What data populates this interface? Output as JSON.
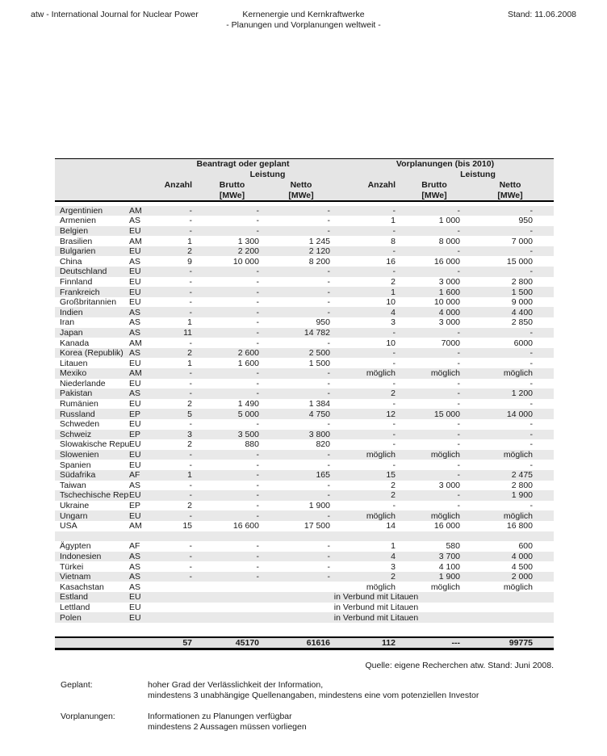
{
  "page_header": {
    "left": "atw - International Journal for Nuclear Power",
    "center_line1": "Kernenergie und Kernkraftwerke",
    "center_line2": "- Planungen und Vorplanungen weltweit -",
    "right": "Stand: 11.06.2008"
  },
  "table": {
    "group_headers": {
      "beantragt": "Beantragt oder geplant",
      "vorplanungen": "Vorplanungen (bis 2010)",
      "leistung": "Leistung"
    },
    "columns": {
      "anzahl": "Anzahl",
      "brutto": "Brutto",
      "netto": "Netto",
      "mwe": "[MWe]"
    },
    "rows": [
      {
        "type": "data",
        "country": "Argentinien",
        "region": "AM",
        "cells": [
          "-",
          "-",
          "-",
          "-",
          "-",
          "-"
        ]
      },
      {
        "type": "data",
        "country": "Armenien",
        "region": "AS",
        "cells": [
          "-",
          "-",
          "-",
          "1",
          "1 000",
          "950"
        ]
      },
      {
        "type": "data",
        "country": "Belgien",
        "region": "EU",
        "cells": [
          "-",
          "-",
          "-",
          "-",
          "-",
          "-"
        ]
      },
      {
        "type": "data",
        "country": "Brasilien",
        "region": "AM",
        "cells": [
          "1",
          "1 300",
          "1 245",
          "8",
          "8 000",
          "7 000"
        ]
      },
      {
        "type": "data",
        "country": "Bulgarien",
        "region": "EU",
        "cells": [
          "2",
          "2 200",
          "2 120",
          "-",
          "-",
          "-"
        ]
      },
      {
        "type": "data",
        "country": "China",
        "region": "AS",
        "cells": [
          "9",
          "10 000",
          "8 200",
          "16",
          "16 000",
          "15 000"
        ]
      },
      {
        "type": "data",
        "country": "Deutschland",
        "region": "EU",
        "cells": [
          "-",
          "-",
          "-",
          "-",
          "-",
          "-"
        ]
      },
      {
        "type": "data",
        "country": "Finnland",
        "region": "EU",
        "cells": [
          "-",
          "-",
          "-",
          "2",
          "3 000",
          "2 800"
        ]
      },
      {
        "type": "data",
        "country": "Frankreich",
        "region": "EU",
        "cells": [
          "-",
          "-",
          "-",
          "1",
          "1 600",
          "1 500"
        ]
      },
      {
        "type": "data",
        "country": "Großbritannien",
        "region": "EU",
        "cells": [
          "-",
          "-",
          "-",
          "10",
          "10 000",
          "9 000"
        ]
      },
      {
        "type": "data",
        "country": "Indien",
        "region": "AS",
        "cells": [
          "-",
          "-",
          "-",
          "4",
          "4 000",
          "4 400"
        ]
      },
      {
        "type": "data",
        "country": "Iran",
        "region": "AS",
        "cells": [
          "1",
          "-",
          "950",
          "3",
          "3 000",
          "2 850"
        ]
      },
      {
        "type": "data",
        "country": "Japan",
        "region": "AS",
        "cells": [
          "11",
          "-",
          "14 782",
          "-",
          "-",
          "-"
        ]
      },
      {
        "type": "data",
        "country": "Kanada",
        "region": "AM",
        "cells": [
          "-",
          "-",
          "-",
          "10",
          "7000",
          "6000"
        ]
      },
      {
        "type": "data",
        "country": "Korea (Republik)",
        "region": "AS",
        "cells": [
          "2",
          "2 600",
          "2 500",
          "-",
          "-",
          "-"
        ]
      },
      {
        "type": "data",
        "country": "Litauen",
        "region": "EU",
        "cells": [
          "1",
          "1 600",
          "1 500",
          "-",
          "-",
          "-"
        ]
      },
      {
        "type": "data",
        "country": "Mexiko",
        "region": "AM",
        "cells": [
          "-",
          "-",
          "-",
          "möglich",
          "möglich",
          "möglich"
        ]
      },
      {
        "type": "data",
        "country": "Niederlande",
        "region": "EU",
        "cells": [
          "-",
          "-",
          "-",
          "-",
          "-",
          "-"
        ]
      },
      {
        "type": "data",
        "country": "Pakistan",
        "region": "AS",
        "cells": [
          "-",
          "-",
          "-",
          "2",
          "-",
          "1 200"
        ]
      },
      {
        "type": "data",
        "country": "Rumänien",
        "region": "EU",
        "cells": [
          "2",
          "1 490",
          "1 384",
          "-",
          "-",
          "-"
        ]
      },
      {
        "type": "data",
        "country": "Russland",
        "region": "EP",
        "cells": [
          "5",
          "5 000",
          "4 750",
          "12",
          "15 000",
          "14 000"
        ]
      },
      {
        "type": "data",
        "country": "Schweden",
        "region": "EU",
        "cells": [
          "-",
          "-",
          "-",
          "-",
          "-",
          "-"
        ]
      },
      {
        "type": "data",
        "country": "Schweiz",
        "region": "EP",
        "cells": [
          "3",
          "3 500",
          "3 800",
          "-",
          "-",
          "-"
        ]
      },
      {
        "type": "data",
        "country": "Slowakische Repub",
        "region": "EU",
        "cells": [
          "2",
          "880",
          "820",
          "-",
          "-",
          "-"
        ]
      },
      {
        "type": "data",
        "country": "Slowenien",
        "region": "EU",
        "cells": [
          "-",
          "-",
          "-",
          "möglich",
          "möglich",
          "möglich"
        ]
      },
      {
        "type": "data",
        "country": "Spanien",
        "region": "EU",
        "cells": [
          "-",
          "-",
          "-",
          "-",
          "-",
          "-"
        ]
      },
      {
        "type": "data",
        "country": "Südafrika",
        "region": "AF",
        "cells": [
          "1",
          "-",
          "165",
          "15",
          "-",
          "2 475"
        ]
      },
      {
        "type": "data",
        "country": "Taiwan",
        "region": "AS",
        "cells": [
          "-",
          "-",
          "-",
          "2",
          "3 000",
          "2 800"
        ]
      },
      {
        "type": "data",
        "country": "Tschechische Repu",
        "region": "EU",
        "cells": [
          "-",
          "-",
          "-",
          "2",
          "-",
          "1 900"
        ]
      },
      {
        "type": "data",
        "country": "Ukraine",
        "region": "EP",
        "cells": [
          "2",
          "-",
          "1 900",
          "-",
          "-",
          "-"
        ]
      },
      {
        "type": "data",
        "country": "Ungarn",
        "region": "EU",
        "cells": [
          "-",
          "-",
          "-",
          "möglich",
          "möglich",
          "möglich"
        ]
      },
      {
        "type": "data",
        "country": "USA",
        "region": "AM",
        "cells": [
          "15",
          "16 600",
          "17 500",
          "14",
          "16 000",
          "16 800"
        ]
      },
      {
        "type": "blank"
      },
      {
        "type": "data",
        "country": "Ägypten",
        "region": "AF",
        "cells": [
          "-",
          "-",
          "-",
          "1",
          "580",
          "600"
        ]
      },
      {
        "type": "data",
        "country": "Indonesien",
        "region": "AS",
        "cells": [
          "-",
          "-",
          "-",
          "4",
          "3 700",
          "4 000"
        ]
      },
      {
        "type": "data",
        "country": "Türkei",
        "region": "AS",
        "cells": [
          "-",
          "-",
          "-",
          "3",
          "4 100",
          "4 500"
        ]
      },
      {
        "type": "data",
        "country": "Vietnam",
        "region": "AS",
        "cells": [
          "-",
          "-",
          "-",
          "2",
          "1 900",
          "2 000"
        ]
      },
      {
        "type": "data",
        "country": "Kasachstan",
        "region": "AS",
        "cells": [
          "",
          "",
          "",
          "möglich",
          "möglich",
          "möglich"
        ]
      },
      {
        "type": "span",
        "country": "Estland",
        "region": "EU",
        "span_text": "in Verbund mit Litauen"
      },
      {
        "type": "span",
        "country": "Lettland",
        "region": "EU",
        "span_text": "in Verbund mit Litauen"
      },
      {
        "type": "span",
        "country": "Polen",
        "region": "EU",
        "span_text": "in Verbund mit Litauen"
      },
      {
        "type": "blank"
      }
    ],
    "totals": {
      "anzahl1": "57",
      "brutto1": "45170",
      "netto1": "61616",
      "anzahl2": "112",
      "brutto2": "---",
      "netto2": "99775"
    }
  },
  "source_note": "Quelle: eigene Recherchen atw. Stand: Juni 2008.",
  "legend": [
    {
      "term": "Geplant:",
      "lines": [
        "hoher Grad der Verlässlichkeit der Information,",
        "mindestens 3 unabhängige Quellenangaben, mindestens eine vom potenziellen Investor"
      ]
    },
    {
      "term": "Vorplanungen:",
      "lines": [
        "Informationen zu Planungen verfügbar",
        "mindestens 2 Aussagen müssen vorliegen"
      ]
    }
  ],
  "colors": {
    "stripe": "#e9e9e9",
    "header_bg": "#e5e5e5",
    "total_bg": "#e0e0e0",
    "border": "#000000",
    "text": "#1a1a1a"
  }
}
